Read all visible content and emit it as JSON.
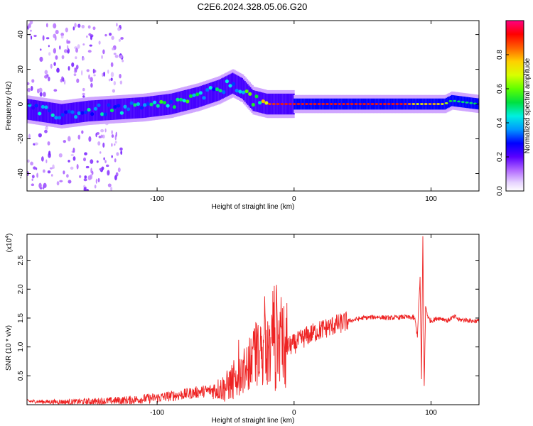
{
  "title": "C2E6.2024.328.05.06.G20",
  "chart_data": [
    {
      "type": "heatmap",
      "xlabel": "Height of straight line (km)",
      "ylabel": "Frequency (Hz)",
      "xlim": [
        -195,
        135
      ],
      "ylim": [
        -50,
        48
      ],
      "xticks": [
        -100,
        0,
        100
      ],
      "yticks": [
        -40,
        -20,
        0,
        20,
        40
      ],
      "colorbar_label": "Normalized spectral amplitude",
      "colorbar_ticks": [
        "0.0",
        "0.2",
        "0.4",
        "0.6",
        "0.8"
      ],
      "colorbar_range": [
        0,
        1
      ],
      "ridge": {
        "x": [
          -195,
          -170,
          -150,
          -130,
          -110,
          -90,
          -70,
          -55,
          -45,
          -38,
          -30,
          -20,
          -10,
          0,
          20,
          40,
          60,
          80,
          90,
          100,
          110,
          115,
          135
        ],
        "y": [
          -3,
          -6,
          -4,
          -3,
          -2,
          0,
          4,
          8,
          12,
          9,
          2,
          0,
          0,
          0,
          0,
          0,
          0,
          0,
          0,
          0,
          0,
          2,
          0
        ],
        "amplitude": [
          0.35,
          0.4,
          0.4,
          0.45,
          0.5,
          0.5,
          0.5,
          0.45,
          0.4,
          0.5,
          0.6,
          0.85,
          0.9,
          0.9,
          0.9,
          0.9,
          0.9,
          0.9,
          0.7,
          0.8,
          0.7,
          0.5,
          0.5
        ]
      }
    },
    {
      "type": "line",
      "xlabel": "Height of straight line (km)",
      "ylabel": "SNR (10 * v/v)",
      "ymultiplier": "(x10",
      "ymultiplier_exp": "4",
      "ymultiplier_close": ")",
      "xlim": [
        -195,
        135
      ],
      "ylim": [
        0,
        2.95
      ],
      "xticks": [
        -100,
        0,
        100
      ],
      "yticks": [
        0.5,
        1.0,
        1.5,
        2.0,
        2.5
      ],
      "color": "#ee2222",
      "series": [
        {
          "x": [
            -195,
            -180,
            -160,
            -140,
            -120,
            -100,
            -90,
            -80,
            -70,
            -60,
            -50,
            -45,
            -40,
            -35,
            -30,
            -25,
            -20,
            -15,
            -10,
            -5,
            0,
            10,
            20,
            30,
            40,
            50,
            60,
            70,
            80,
            88,
            90,
            92,
            93,
            94,
            95,
            96,
            98,
            100,
            105,
            110,
            112,
            115,
            118,
            120,
            125,
            130,
            135
          ],
          "y": [
            0.06,
            0.05,
            0.05,
            0.06,
            0.08,
            0.12,
            0.15,
            0.18,
            0.22,
            0.25,
            0.3,
            0.4,
            0.55,
            0.6,
            0.8,
            0.9,
            0.85,
            0.95,
            0.9,
            1.0,
            1.05,
            1.2,
            1.3,
            1.38,
            1.45,
            1.5,
            1.52,
            1.5,
            1.52,
            1.5,
            1.2,
            2.2,
            0.4,
            2.9,
            0.3,
            1.7,
            1.5,
            1.45,
            1.5,
            1.48,
            1.45,
            1.5,
            1.52,
            1.47,
            1.47,
            1.45,
            1.45
          ]
        }
      ]
    }
  ]
}
